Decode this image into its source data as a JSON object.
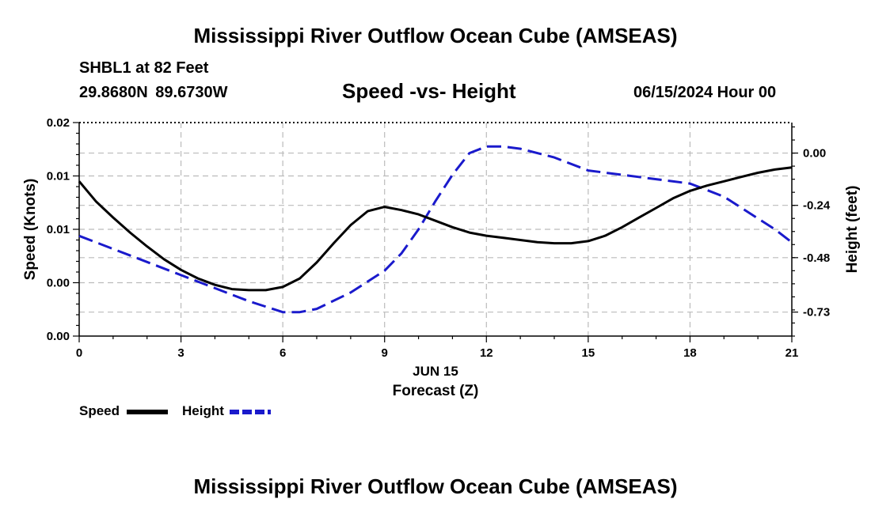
{
  "header": {
    "title": "Mississippi River Outflow Ocean Cube (AMSEAS)",
    "station": "SHBL1 at 82 Feet",
    "coords": "29.8680N  89.6730W",
    "subtitle": "Speed -vs- Height",
    "date": "06/15/2024 Hour 00"
  },
  "footer": {
    "title": "Mississippi River Outflow Ocean Cube (AMSEAS)"
  },
  "colors": {
    "speed": "#000000",
    "height": "#1a1acc",
    "grid": "#bbbbbb"
  },
  "chart_data": {
    "type": "line",
    "title": "Speed -vs- Height",
    "xlabel": "Forecast (Z)",
    "xlabel_date": "JUN 15",
    "ylabel": "Speed (Knots)",
    "y2label": "Height (feet)",
    "xlim": [
      0,
      21
    ],
    "ylim": [
      0,
      0.02
    ],
    "y2lim": [
      -0.84,
      0.14
    ],
    "x_ticks": [
      0,
      3,
      6,
      9,
      12,
      15,
      18,
      21
    ],
    "x_tick_labels": [
      "0",
      "3",
      "6",
      "9",
      "12",
      "15",
      "18",
      "21"
    ],
    "y_ticks": [
      0,
      0.005,
      0.01,
      0.015,
      0.02
    ],
    "y_tick_labels": [
      "0.00",
      "0.00",
      "0.01",
      "0.01",
      "0.02"
    ],
    "y2_ticks": [
      0.0,
      -0.24,
      -0.48,
      -0.73
    ],
    "y2_tick_labels": [
      "0.00",
      "-0.24",
      "-0.48",
      "-0.73"
    ],
    "grid": true,
    "series": [
      {
        "name": "Speed",
        "axis": "left",
        "style": "solid",
        "x": [
          0,
          0.5,
          1,
          1.5,
          2,
          2.5,
          3,
          3.5,
          4,
          4.5,
          5,
          5.5,
          6,
          6.5,
          7,
          7.5,
          8,
          8.5,
          9,
          9.5,
          10,
          10.5,
          11,
          11.5,
          12,
          12.5,
          13,
          13.5,
          14,
          14.5,
          15,
          15.5,
          16,
          16.5,
          17,
          17.5,
          18,
          18.5,
          19,
          19.5,
          20,
          20.5,
          21
        ],
        "values": [
          0.0145,
          0.0126,
          0.0111,
          0.0097,
          0.0084,
          0.0072,
          0.0062,
          0.0054,
          0.0048,
          0.0044,
          0.0043,
          0.0043,
          0.0046,
          0.0054,
          0.0069,
          0.0087,
          0.0104,
          0.0117,
          0.0121,
          0.0118,
          0.0114,
          0.0108,
          0.0102,
          0.0097,
          0.0094,
          0.0092,
          0.009,
          0.0088,
          0.0087,
          0.0087,
          0.0089,
          0.0094,
          0.0102,
          0.0111,
          0.012,
          0.0129,
          0.0136,
          0.0141,
          0.0145,
          0.0149,
          0.0153,
          0.0156,
          0.0158
        ]
      },
      {
        "name": "Height",
        "axis": "right",
        "style": "dashed",
        "x": [
          0,
          1,
          2,
          3,
          4,
          5,
          6,
          6.5,
          7,
          8,
          9,
          9.5,
          10,
          10.5,
          11,
          11.5,
          12,
          12.5,
          13,
          14,
          15,
          16,
          17,
          18,
          18.5,
          19,
          19.5,
          20,
          20.5,
          21
        ],
        "values": [
          -0.38,
          -0.44,
          -0.5,
          -0.56,
          -0.62,
          -0.68,
          -0.73,
          -0.73,
          -0.715,
          -0.64,
          -0.54,
          -0.46,
          -0.35,
          -0.22,
          -0.1,
          0.0,
          0.03,
          0.03,
          0.02,
          -0.02,
          -0.08,
          -0.1,
          -0.12,
          -0.14,
          -0.17,
          -0.2,
          -0.25,
          -0.3,
          -0.35,
          -0.41
        ]
      }
    ]
  }
}
